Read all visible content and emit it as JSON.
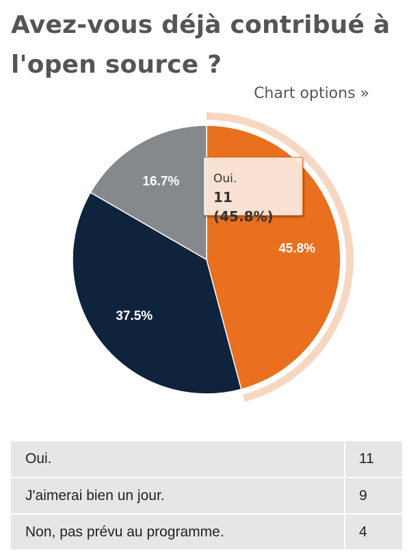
{
  "page": {
    "title": "Avez-vous déjà contribué à l'open source ?",
    "chart_options_label": "Chart options »"
  },
  "colors": {
    "oui": "#E8701E",
    "jour": "#0F233C",
    "non": "#86898C",
    "hover_halo": "#F6D7C2",
    "title": "#555555",
    "table_row_bg": "#E6E6E6"
  },
  "tooltip": {
    "name": "Oui.",
    "value": "11 (45.8%)"
  },
  "chart_data": {
    "type": "pie",
    "title": "Avez-vous déjà contribué à l'open source ?",
    "categories": [
      "Oui.",
      "J'aimerai bien un jour.",
      "Non, pas prévu au programme."
    ],
    "values": [
      11,
      9,
      4
    ],
    "percent_labels": [
      "45.8%",
      "37.5%",
      "16.7%"
    ],
    "colors": [
      "#E8701E",
      "#0F233C",
      "#86898C"
    ],
    "highlighted": "Oui.",
    "legend": "none"
  },
  "table": {
    "rows": [
      {
        "label": "Oui.",
        "count": "11"
      },
      {
        "label": "J'aimerai bien un jour.",
        "count": "9"
      },
      {
        "label": "Non, pas prévu au programme.",
        "count": "4"
      }
    ]
  }
}
